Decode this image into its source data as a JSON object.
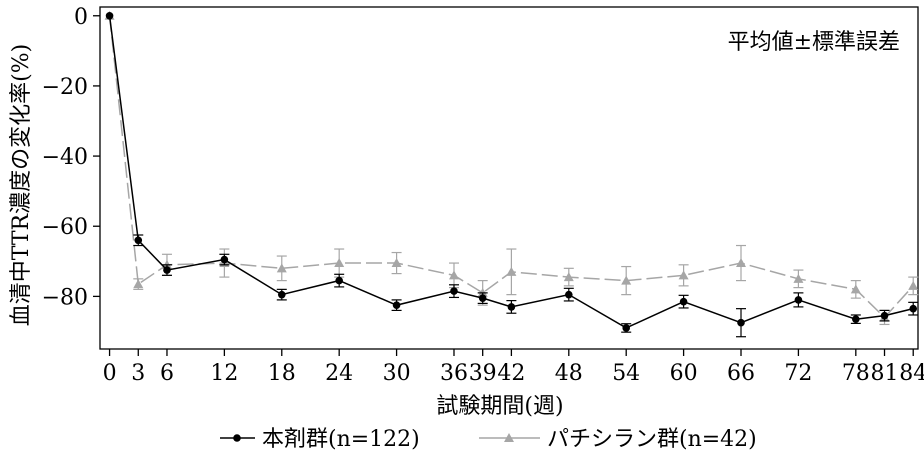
{
  "chart_data": {
    "type": "line",
    "xlabel": "試験期間(週)",
    "ylabel": "血清中TTR濃度の変化率(%)",
    "annotation": "平均値±標準誤差",
    "x": [
      0,
      3,
      6,
      12,
      18,
      24,
      30,
      36,
      39,
      42,
      48,
      54,
      60,
      66,
      72,
      78,
      81,
      84
    ],
    "x_tick_labels": [
      "0",
      "3",
      "6",
      "12",
      "18",
      "24",
      "30",
      "36",
      "39",
      "42",
      "48",
      "54",
      "60",
      "66",
      "72",
      "78",
      "81",
      "84"
    ],
    "xlim": [
      -1,
      84.5
    ],
    "y_ticks": [
      0,
      -20,
      -40,
      -60,
      -80
    ],
    "y_tick_labels": [
      "0",
      "−20",
      "−40",
      "−60",
      "−80"
    ],
    "ylim": [
      -95,
      2.5
    ],
    "grid": false,
    "legend_position": "bottom",
    "series": [
      {
        "name": "本剤群(n=122)",
        "color": "#000000",
        "marker": "circle",
        "line_style": "solid",
        "x": [
          0,
          3,
          6,
          12,
          18,
          24,
          30,
          36,
          39,
          42,
          48,
          54,
          60,
          66,
          72,
          78,
          81,
          84
        ],
        "values": [
          0,
          -64,
          -72.5,
          -69.5,
          -79.5,
          -75.5,
          -82.5,
          -78.5,
          -80.5,
          -83,
          -79.5,
          -89,
          -81.5,
          -87.5,
          -81,
          -86.5,
          -85.5,
          -83.5
        ],
        "errors": [
          0,
          1.5,
          1.5,
          1.5,
          1.5,
          1.8,
          1.5,
          1.8,
          1.5,
          1.8,
          1.8,
          1.2,
          1.8,
          4,
          2,
          1.2,
          1.5,
          1.8
        ]
      },
      {
        "name": "パチシラン群(n=42)",
        "color": "#a6a6a6",
        "marker": "triangle",
        "line_style": "dashed",
        "x": [
          0,
          3,
          6,
          12,
          18,
          24,
          30,
          36,
          39,
          42,
          48,
          54,
          60,
          66,
          72,
          78,
          81,
          84
        ],
        "values": [
          0,
          -76.5,
          -71,
          -70.5,
          -72,
          -70.5,
          -70.5,
          -74,
          -79,
          -73,
          -74.5,
          -75.5,
          -74,
          -70.5,
          -75,
          -78,
          -86,
          -77
        ],
        "errors": [
          0,
          1.5,
          3,
          4,
          3.5,
          4,
          3,
          3.5,
          3.5,
          6.5,
          2.5,
          4,
          3,
          5,
          2.5,
          2.5,
          2,
          2.5
        ]
      }
    ]
  }
}
